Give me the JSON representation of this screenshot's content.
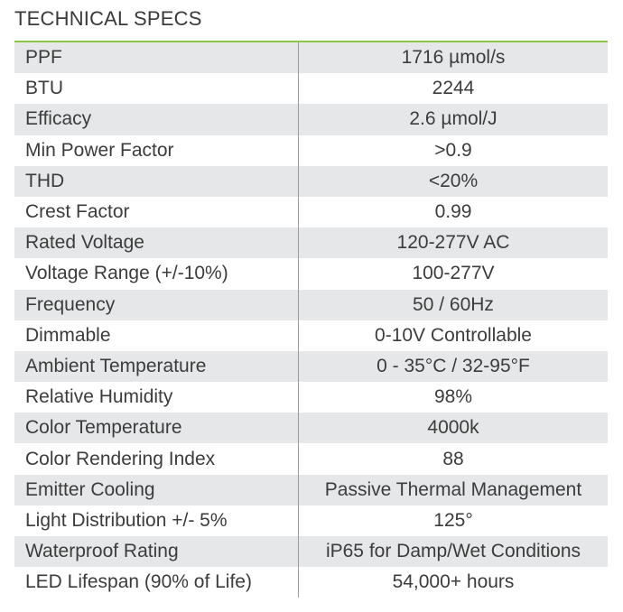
{
  "title": "TECHNICAL SPECS",
  "accent_color": "#8dc63f",
  "shade_color": "#e6e7e8",
  "specs": [
    {
      "label": "PPF",
      "value": "1716 µmol/s"
    },
    {
      "label": "BTU",
      "value": "2244"
    },
    {
      "label": "Efficacy",
      "value": "2.6 µmol/J"
    },
    {
      "label": "Min Power Factor",
      "value": ">0.9"
    },
    {
      "label": "THD",
      "value": "<20%"
    },
    {
      "label": "Crest Factor",
      "value": "0.99"
    },
    {
      "label": "Rated Voltage",
      "value": "120-277V AC"
    },
    {
      "label": "Voltage Range (+/-10%)",
      "value": "100-277V"
    },
    {
      "label": "Frequency",
      "value": "50 / 60Hz"
    },
    {
      "label": "Dimmable",
      "value": "0-10V Controllable"
    },
    {
      "label": "Ambient Temperature",
      "value": "0 - 35°C / 32-95°F"
    },
    {
      "label": "Relative Humidity",
      "value": "98%"
    },
    {
      "label": "Color Temperature",
      "value": "4000k"
    },
    {
      "label": "Color Rendering Index",
      "value": "88"
    },
    {
      "label": "Emitter Cooling",
      "value": "Passive Thermal Management"
    },
    {
      "label": "Light Distribution +/- 5%",
      "value": "125°"
    },
    {
      "label": "Waterproof Rating",
      "value": "iP65 for Damp/Wet Conditions"
    },
    {
      "label": "LED Lifespan (90% of Life)",
      "value": "54,000+ hours"
    }
  ]
}
